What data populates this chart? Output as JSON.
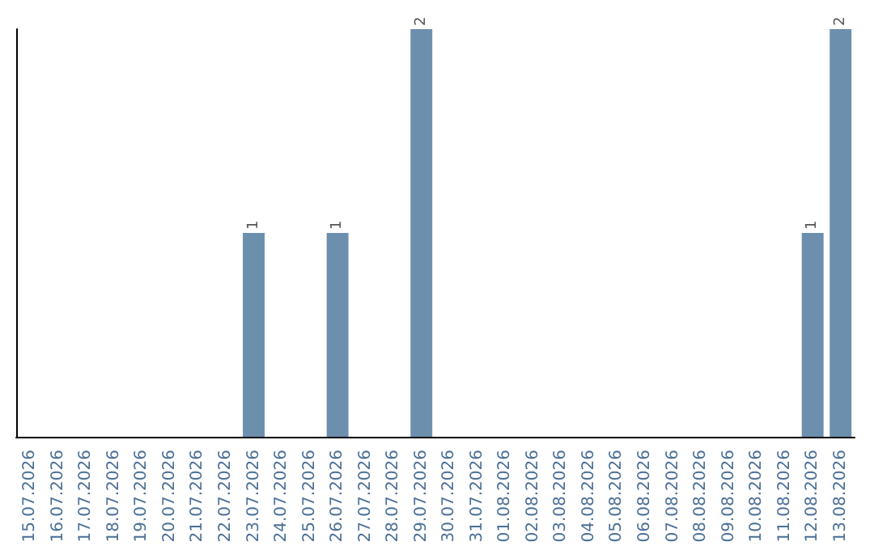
{
  "chart_data": {
    "type": "bar",
    "categories": [
      "15.07.2026",
      "16.07.2026",
      "17.07.2026",
      "18.07.2026",
      "19.07.2026",
      "20.07.2026",
      "21.07.2026",
      "22.07.2026",
      "23.07.2026",
      "24.07.2026",
      "25.07.2026",
      "26.07.2026",
      "27.07.2026",
      "28.07.2026",
      "29.07.2026",
      "30.07.2026",
      "31.07.2026",
      "01.08.2026",
      "02.08.2026",
      "03.08.2026",
      "04.08.2026",
      "05.08.2026",
      "06.08.2026",
      "07.08.2026",
      "08.08.2026",
      "09.08.2026",
      "10.08.2026",
      "11.08.2026",
      "12.08.2026",
      "13.08.2026"
    ],
    "values": [
      0,
      0,
      0,
      0,
      0,
      0,
      0,
      0,
      1,
      0,
      0,
      1,
      0,
      0,
      2,
      0,
      0,
      0,
      0,
      0,
      0,
      0,
      0,
      0,
      0,
      0,
      0,
      0,
      1,
      2
    ],
    "value_labels": [
      null,
      null,
      null,
      null,
      null,
      null,
      null,
      null,
      "1",
      null,
      null,
      "1",
      null,
      null,
      "2",
      null,
      null,
      null,
      null,
      null,
      null,
      null,
      null,
      null,
      null,
      null,
      null,
      null,
      "1",
      "2"
    ],
    "color": "#6d8fae",
    "tick_labels": "x"
  }
}
